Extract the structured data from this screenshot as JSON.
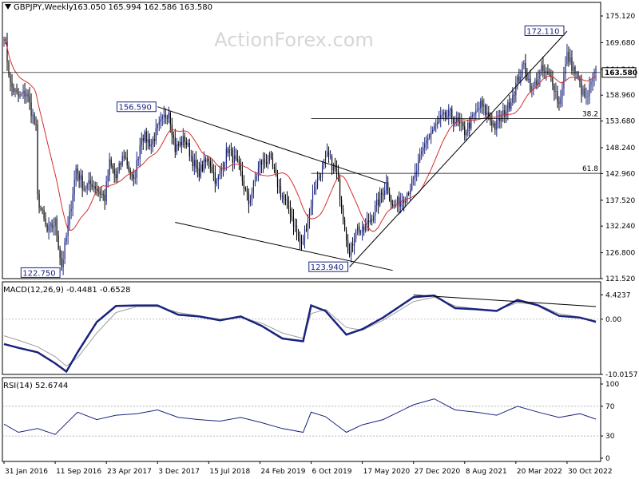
{
  "header": {
    "symbol": "GBPJPY,Weekly",
    "ohlc": "163.050 165.994 162.586 163.580"
  },
  "watermark": "ActionForex.com",
  "chart_data": [
    {
      "type": "candlestick",
      "panel": "price",
      "y_ticks": [
        "175.120",
        "169.680",
        "164.240",
        "158.960",
        "153.680",
        "148.240",
        "142.960",
        "137.520",
        "132.240",
        "126.800",
        "121.520"
      ],
      "ylim": [
        121.52,
        177.0
      ],
      "current_price": "163.580",
      "close_series": [
        {
          "date": "2016-01-31",
          "close": 171.5
        },
        {
          "date": "2016-02-28",
          "close": 161.0
        },
        {
          "date": "2016-04-03",
          "close": 158.5
        },
        {
          "date": "2016-05-08",
          "close": 159.5
        },
        {
          "date": "2016-06-19",
          "close": 152.0
        },
        {
          "date": "2016-06-26",
          "close": 138.0
        },
        {
          "date": "2016-08-07",
          "close": 131.0
        },
        {
          "date": "2016-09-11",
          "close": 133.0
        },
        {
          "date": "2016-10-09",
          "close": 124.0
        },
        {
          "date": "2016-11-06",
          "close": 132.0
        },
        {
          "date": "2016-12-11",
          "close": 144.0
        },
        {
          "date": "2017-01-15",
          "close": 140.0
        },
        {
          "date": "2017-02-19",
          "close": 141.0
        },
        {
          "date": "2017-04-16",
          "close": 138.0
        },
        {
          "date": "2017-05-07",
          "close": 145.0
        },
        {
          "date": "2017-06-04",
          "close": 142.0
        },
        {
          "date": "2017-07-09",
          "close": 147.0
        },
        {
          "date": "2017-08-20",
          "close": 141.0
        },
        {
          "date": "2017-09-24",
          "close": 151.0
        },
        {
          "date": "2017-11-05",
          "close": 149.0
        },
        {
          "date": "2017-12-03",
          "close": 152.0
        },
        {
          "date": "2018-01-21",
          "close": 156.0
        },
        {
          "date": "2018-02-18",
          "close": 148.0
        },
        {
          "date": "2018-04-01",
          "close": 150.0
        },
        {
          "date": "2018-05-27",
          "close": 143.0
        },
        {
          "date": "2018-07-15",
          "close": 146.0
        },
        {
          "date": "2018-08-19",
          "close": 141.0
        },
        {
          "date": "2018-10-07",
          "close": 148.0
        },
        {
          "date": "2018-11-25",
          "close": 144.0
        },
        {
          "date": "2019-01-06",
          "close": 137.0
        },
        {
          "date": "2019-02-24",
          "close": 145.0
        },
        {
          "date": "2019-04-07",
          "close": 146.0
        },
        {
          "date": "2019-05-26",
          "close": 139.0
        },
        {
          "date": "2019-07-07",
          "close": 135.0
        },
        {
          "date": "2019-08-25",
          "close": 128.0
        },
        {
          "date": "2019-09-22",
          "close": 134.0
        },
        {
          "date": "2019-10-20",
          "close": 140.0
        },
        {
          "date": "2019-12-15",
          "close": 146.5
        },
        {
          "date": "2020-01-26",
          "close": 143.0
        },
        {
          "date": "2020-03-22",
          "close": 126.0
        },
        {
          "date": "2020-04-19",
          "close": 132.0
        },
        {
          "date": "2020-05-17",
          "close": 131.0
        },
        {
          "date": "2020-07-05",
          "close": 135.0
        },
        {
          "date": "2020-08-30",
          "close": 141.0
        },
        {
          "date": "2020-09-27",
          "close": 136.0
        },
        {
          "date": "2020-11-22",
          "close": 138.5
        },
        {
          "date": "2020-12-27",
          "close": 141.5
        },
        {
          "date": "2021-02-21",
          "close": 150.0
        },
        {
          "date": "2021-04-25",
          "close": 154.0
        },
        {
          "date": "2021-06-06",
          "close": 155.0
        },
        {
          "date": "2021-08-08",
          "close": 151.5
        },
        {
          "date": "2021-10-17",
          "close": 157.0
        },
        {
          "date": "2021-12-19",
          "close": 152.5
        },
        {
          "date": "2022-02-13",
          "close": 156.5
        },
        {
          "date": "2022-03-20",
          "close": 161.0
        },
        {
          "date": "2022-04-24",
          "close": 165.0
        },
        {
          "date": "2022-05-29",
          "close": 160.0
        },
        {
          "date": "2022-07-10",
          "close": 164.0
        },
        {
          "date": "2022-08-28",
          "close": 162.0
        },
        {
          "date": "2022-09-25",
          "close": 157.0
        },
        {
          "date": "2022-10-30",
          "close": 167.0
        },
        {
          "date": "2022-11-20",
          "close": 165.0
        },
        {
          "date": "2022-12-18",
          "close": 162.0
        },
        {
          "date": "2023-01-01",
          "close": 160.0
        },
        {
          "date": "2023-01-22",
          "close": 158.0
        },
        {
          "date": "2023-02-12",
          "close": 161.0
        },
        {
          "date": "2023-03-05",
          "close": 163.58
        }
      ],
      "moving_average": {
        "color": "#d32f2f"
      },
      "candle_colors": {
        "up": "#1a237e",
        "down": "#000000"
      },
      "labels": [
        {
          "text": "156.590",
          "date": "2017-12-03",
          "price": 156.59
        },
        {
          "text": "122.750",
          "date": "2016-10-09",
          "price": 122.75
        },
        {
          "text": "123.940",
          "date": "2020-03-22",
          "price": 123.94
        },
        {
          "text": "172.110",
          "date": "2022-10-23",
          "price": 172.11
        }
      ],
      "fib_levels": [
        {
          "text": "38.2",
          "price": 154.2
        },
        {
          "text": "61.8",
          "price": 143.0
        }
      ],
      "trendlines": [
        {
          "from": [
            "2017-12-03",
            156.6
          ],
          "to": [
            "2020-08-30",
            141.0
          ]
        },
        {
          "from": [
            "2018-02-18",
            133.0
          ],
          "to": [
            "2020-09-27",
            123.2
          ]
        },
        {
          "from": [
            "2020-03-22",
            123.9
          ],
          "to": [
            "2022-10-30",
            172.0
          ]
        }
      ]
    },
    {
      "type": "line",
      "panel": "macd",
      "title": "MACD(12,26,9) -0.4481 -0.6528",
      "y_ticks": [
        "4.4237",
        "0.00",
        "-10.0157"
      ],
      "ylim": [
        -10.0157,
        5.6
      ],
      "series": [
        {
          "color": "#1a237e",
          "role": "macd"
        },
        {
          "color": "#9e9e9e",
          "role": "signal"
        }
      ],
      "x": [
        "2016-01-31",
        "2016-04-03",
        "2016-06-26",
        "2016-09-11",
        "2016-10-30",
        "2016-12-18",
        "2017-03-12",
        "2017-06-04",
        "2017-09-03",
        "2017-12-03",
        "2018-03-04",
        "2018-06-03",
        "2018-09-02",
        "2018-12-02",
        "2019-03-03",
        "2019-06-02",
        "2019-09-01",
        "2019-10-06",
        "2019-12-08",
        "2020-03-08",
        "2020-05-17",
        "2020-08-16",
        "2020-12-27",
        "2021-03-28",
        "2021-06-27",
        "2021-09-26",
        "2021-12-26",
        "2022-03-27",
        "2022-06-26",
        "2022-09-25",
        "2022-12-25",
        "2023-03-05"
      ],
      "macd": [
        -4.5,
        -5.2,
        -6.0,
        -8.0,
        -9.5,
        -6.0,
        -0.5,
        2.4,
        2.5,
        2.5,
        0.8,
        0.5,
        -0.2,
        0.5,
        -1.2,
        -3.5,
        -4.0,
        2.5,
        1.5,
        -2.8,
        -1.8,
        0.3,
        4.0,
        4.3,
        2.0,
        1.8,
        1.5,
        3.5,
        2.5,
        0.6,
        0.3,
        -0.45
      ],
      "signal": [
        -3.0,
        -3.8,
        -5.0,
        -6.8,
        -8.5,
        -7.0,
        -2.5,
        1.2,
        2.3,
        2.3,
        1.2,
        0.6,
        0.0,
        0.3,
        -0.7,
        -2.5,
        -3.5,
        1.0,
        1.8,
        -1.5,
        -2.0,
        -0.2,
        3.2,
        4.0,
        2.4,
        1.9,
        1.6,
        3.0,
        2.6,
        1.0,
        0.4,
        -0.65
      ],
      "divergence_line": {
        "from": [
          "2020-12-27",
          4.4
        ],
        "to": [
          "2023-03-05",
          2.3
        ]
      }
    },
    {
      "type": "line",
      "panel": "rsi",
      "title": "RSI(14) 52.6744",
      "y_ticks": [
        "100",
        "70",
        "30",
        "0"
      ],
      "ylim": [
        0,
        100
      ],
      "reference_lines": [
        70,
        30
      ],
      "series": [
        {
          "color": "#1a237e",
          "role": "rsi"
        }
      ],
      "x": [
        "2016-01-31",
        "2016-04-03",
        "2016-06-26",
        "2016-09-11",
        "2016-12-18",
        "2017-03-12",
        "2017-06-04",
        "2017-09-03",
        "2017-12-03",
        "2018-03-04",
        "2018-06-03",
        "2018-09-02",
        "2018-12-02",
        "2019-03-03",
        "2019-06-02",
        "2019-09-01",
        "2019-10-06",
        "2019-12-08",
        "2020-03-08",
        "2020-05-17",
        "2020-08-16",
        "2020-12-27",
        "2021-03-28",
        "2021-06-27",
        "2021-09-26",
        "2021-12-26",
        "2022-03-27",
        "2022-06-26",
        "2022-09-25",
        "2022-12-25",
        "2023-03-05"
      ],
      "values": [
        46,
        35,
        40,
        32,
        62,
        52,
        58,
        60,
        65,
        55,
        52,
        50,
        55,
        48,
        40,
        35,
        62,
        56,
        35,
        45,
        52,
        72,
        80,
        65,
        62,
        58,
        70,
        62,
        55,
        60,
        52.7
      ]
    }
  ],
  "x_axis": {
    "tick_labels": [
      "31 Jan 2016",
      "11 Sep 2016",
      "23 Apr 2017",
      "3 Dec 2017",
      "15 Jul 2018",
      "24 Feb 2019",
      "6 Oct 2019",
      "17 May 2020",
      "27 Dec 2020",
      "8 Aug 2021",
      "20 Mar 2022",
      "30 Oct 2022"
    ],
    "tick_dates": [
      "2016-01-31",
      "2016-09-11",
      "2017-04-23",
      "2017-12-03",
      "2018-07-15",
      "2019-02-24",
      "2019-10-06",
      "2020-05-17",
      "2020-12-27",
      "2021-08-08",
      "2022-03-20",
      "2022-10-30"
    ],
    "range": [
      "2016-01-24",
      "2023-03-26"
    ]
  },
  "colors": {
    "background": "#ffffff",
    "axis": "#000000",
    "guide": "#000000"
  }
}
